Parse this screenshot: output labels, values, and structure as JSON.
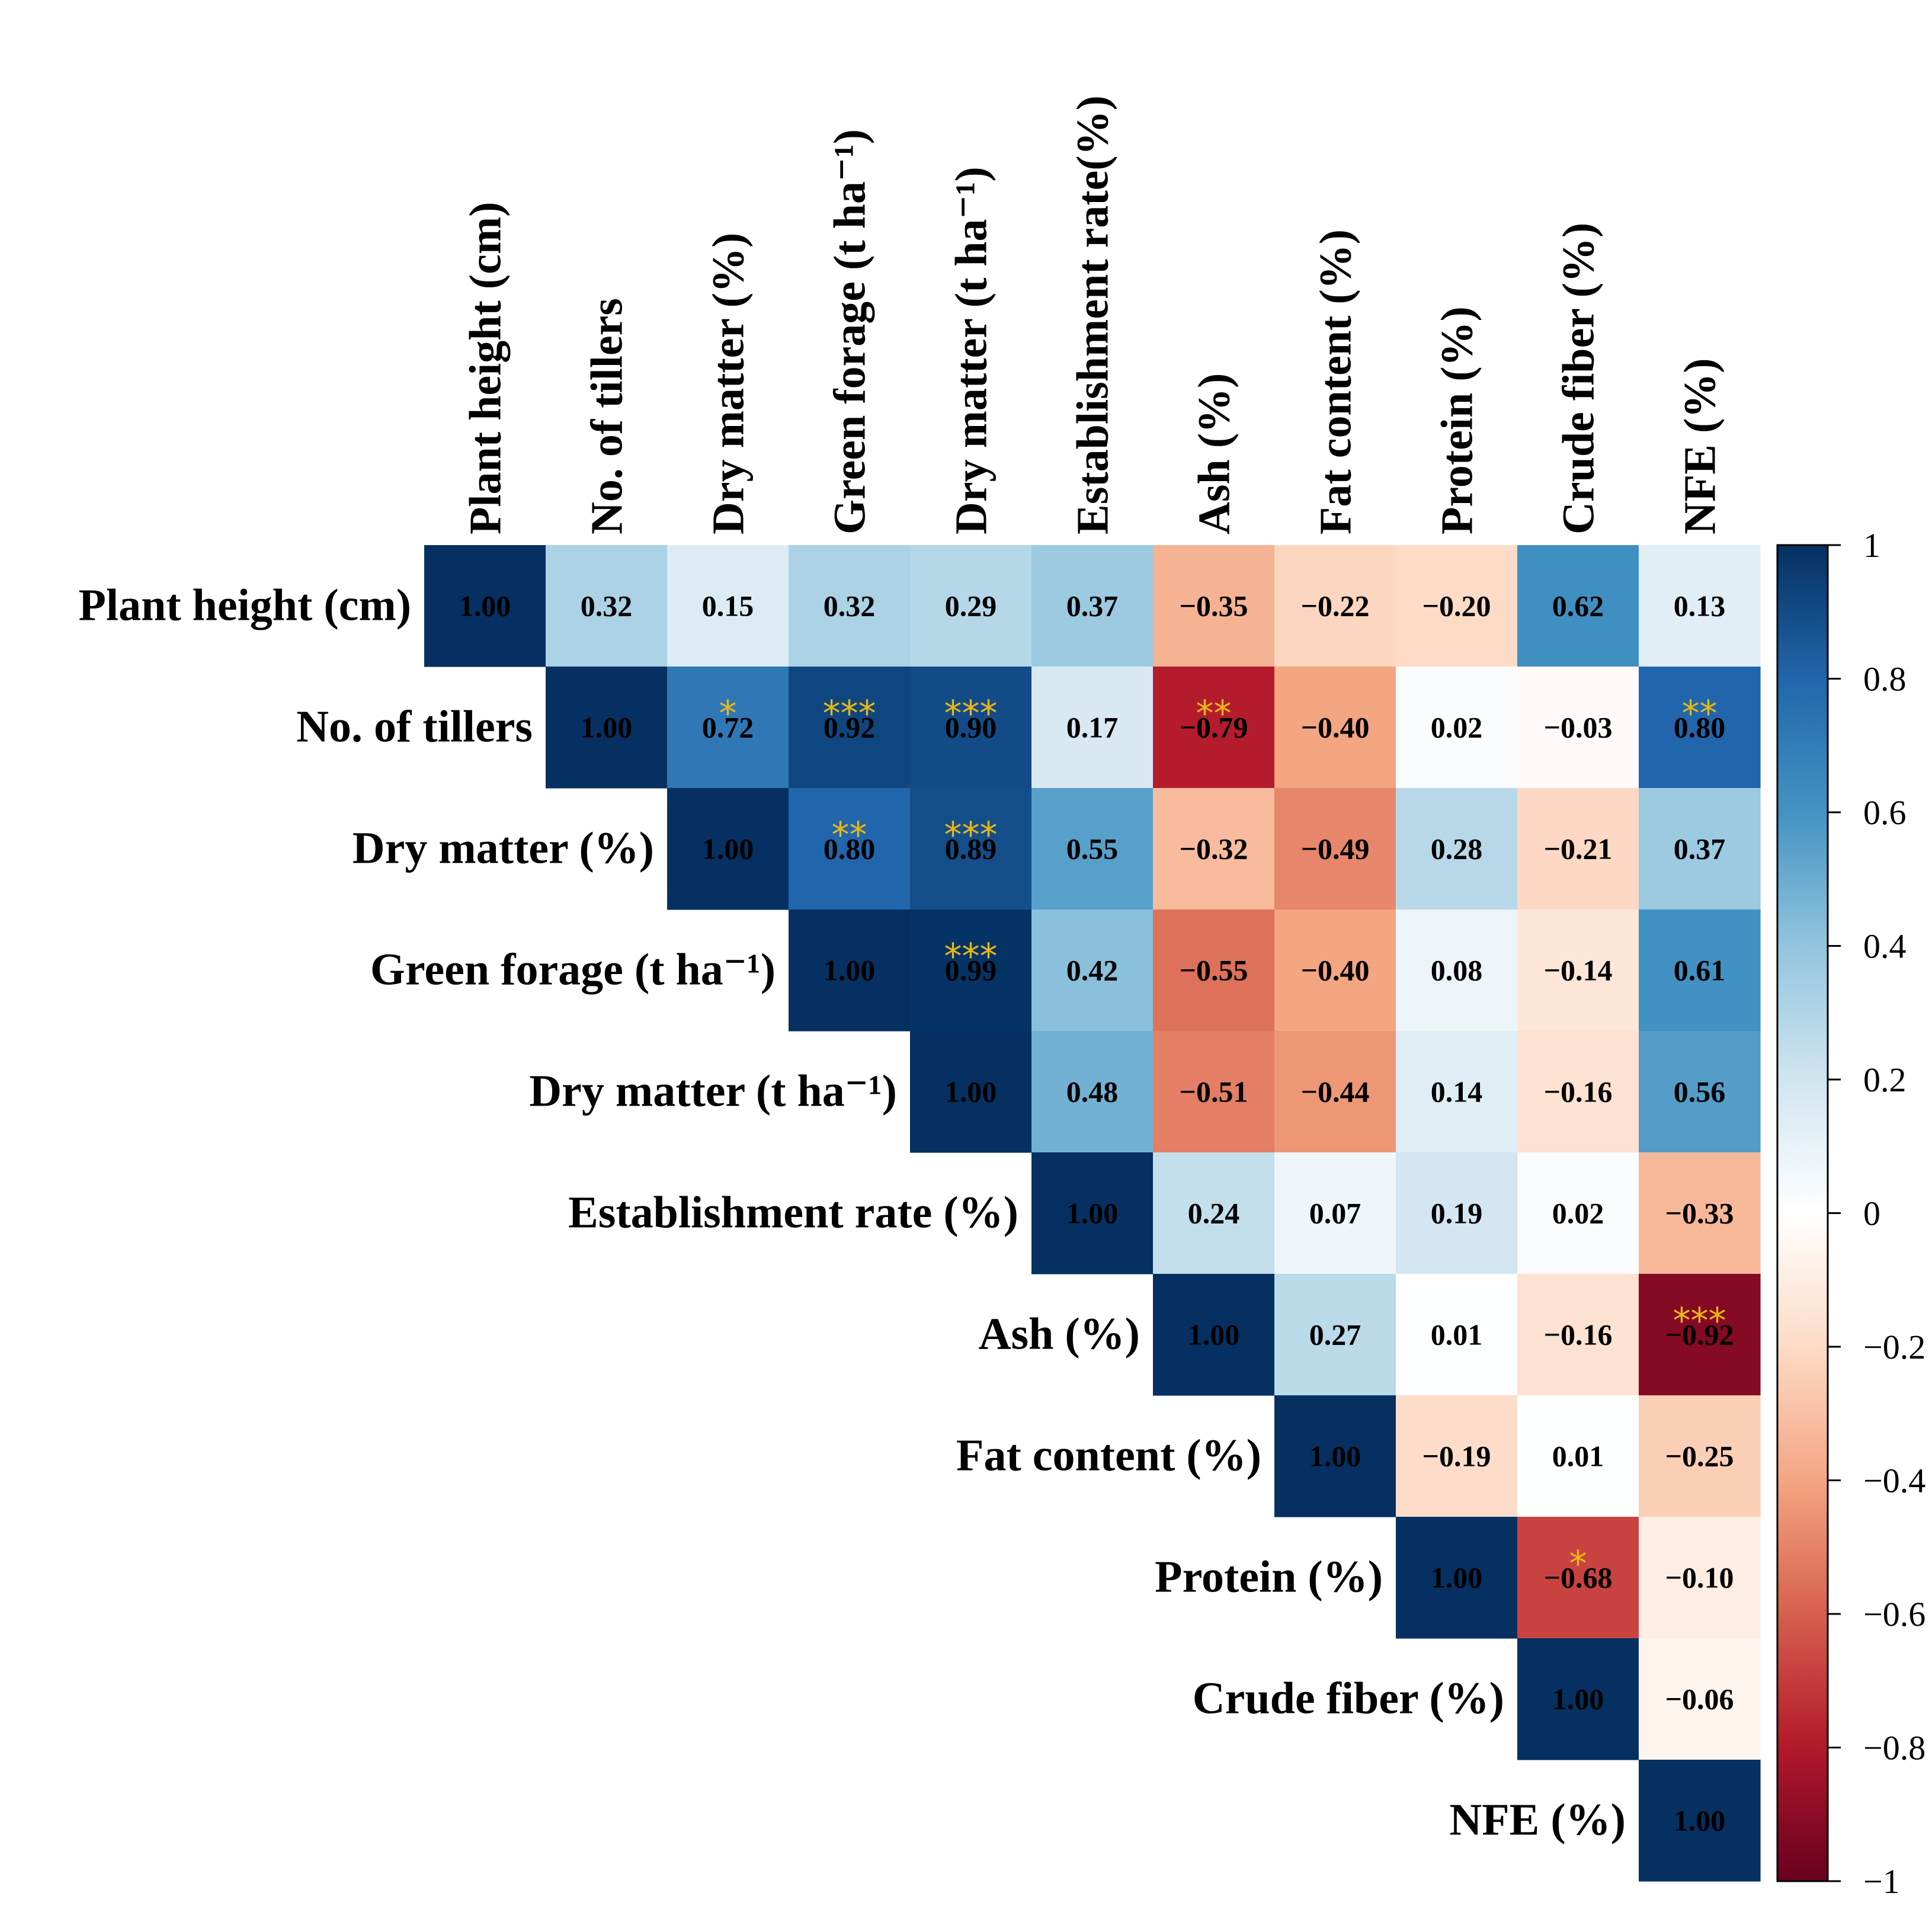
{
  "chart_data": {
    "type": "heatmap",
    "subtype": "correlation-upper-triangle",
    "variables": [
      "Plant height (cm)",
      "No. of tillers",
      "Dry matter (%)",
      "Green forage (t ha⁻¹)",
      "Dry matter (t ha⁻¹)",
      "Establishment rate (%)",
      "Ash (%)",
      "Fat content (%)",
      "Protein (%)",
      "Crude fiber (%)",
      "NFE (%)"
    ],
    "column_labels": [
      "Plant height (cm)",
      "No. of tillers",
      "Dry matter (%)",
      "Green forage (t ha⁻¹)",
      "Dry matter (t ha⁻¹)",
      "Establishment rate(%)",
      "Ash (%)",
      "Fat content (%)",
      "Protein (%)",
      "Crude fiber (%)",
      "NFE (%)"
    ],
    "matrix": [
      [
        1.0,
        0.32,
        0.15,
        0.32,
        0.29,
        0.37,
        -0.35,
        -0.22,
        -0.2,
        0.62,
        0.13
      ],
      [
        null,
        1.0,
        0.72,
        0.92,
        0.9,
        0.17,
        -0.79,
        -0.4,
        0.02,
        -0.03,
        0.8
      ],
      [
        null,
        null,
        1.0,
        0.8,
        0.89,
        0.55,
        -0.32,
        -0.49,
        0.28,
        -0.21,
        0.37
      ],
      [
        null,
        null,
        null,
        1.0,
        0.99,
        0.42,
        -0.55,
        -0.4,
        0.08,
        -0.14,
        0.61
      ],
      [
        null,
        null,
        null,
        null,
        1.0,
        0.48,
        -0.51,
        -0.44,
        0.14,
        -0.16,
        0.56
      ],
      [
        null,
        null,
        null,
        null,
        null,
        1.0,
        0.24,
        0.07,
        0.19,
        0.02,
        -0.33
      ],
      [
        null,
        null,
        null,
        null,
        null,
        null,
        1.0,
        0.27,
        0.01,
        -0.16,
        -0.92
      ],
      [
        null,
        null,
        null,
        null,
        null,
        null,
        null,
        1.0,
        -0.19,
        0.01,
        -0.25
      ],
      [
        null,
        null,
        null,
        null,
        null,
        null,
        null,
        null,
        1.0,
        -0.68,
        -0.1
      ],
      [
        null,
        null,
        null,
        null,
        null,
        null,
        null,
        null,
        null,
        1.0,
        -0.06
      ],
      [
        null,
        null,
        null,
        null,
        null,
        null,
        null,
        null,
        null,
        null,
        1.0
      ]
    ],
    "significance": [
      {
        "row": 1,
        "col": 2,
        "stars": "*"
      },
      {
        "row": 1,
        "col": 3,
        "stars": "***"
      },
      {
        "row": 1,
        "col": 4,
        "stars": "***"
      },
      {
        "row": 1,
        "col": 6,
        "stars": "**"
      },
      {
        "row": 1,
        "col": 10,
        "stars": "**"
      },
      {
        "row": 2,
        "col": 3,
        "stars": "**"
      },
      {
        "row": 2,
        "col": 4,
        "stars": "***"
      },
      {
        "row": 3,
        "col": 4,
        "stars": "***"
      },
      {
        "row": 6,
        "col": 10,
        "stars": "***"
      },
      {
        "row": 8,
        "col": 9,
        "stars": "*"
      }
    ],
    "colorbar": {
      "ticks": [
        1,
        0.8,
        0.6,
        0.4,
        0.2,
        0,
        -0.2,
        -0.4,
        -0.6,
        -0.8,
        -1
      ],
      "tick_labels": [
        "1",
        "0.8",
        "0.6",
        "0.4",
        "0.2",
        "0",
        "−0.2",
        "−0.4",
        "−0.6",
        "−0.8",
        "−1"
      ],
      "range": [
        -1,
        1
      ]
    },
    "colors": {
      "scale": [
        {
          "v": -1.0,
          "c": "#67001F"
        },
        {
          "v": -0.8,
          "c": "#B2182B"
        },
        {
          "v": -0.6,
          "c": "#D6604D"
        },
        {
          "v": -0.4,
          "c": "#F4A582"
        },
        {
          "v": -0.2,
          "c": "#FDDBC7"
        },
        {
          "v": 0.0,
          "c": "#FFFFFF"
        },
        {
          "v": 0.2,
          "c": "#D1E5F0"
        },
        {
          "v": 0.4,
          "c": "#92C5DE"
        },
        {
          "v": 0.6,
          "c": "#4393C3"
        },
        {
          "v": 0.8,
          "c": "#2166AC"
        },
        {
          "v": 1.0,
          "c": "#053061"
        }
      ],
      "star": "#E8B818"
    }
  }
}
